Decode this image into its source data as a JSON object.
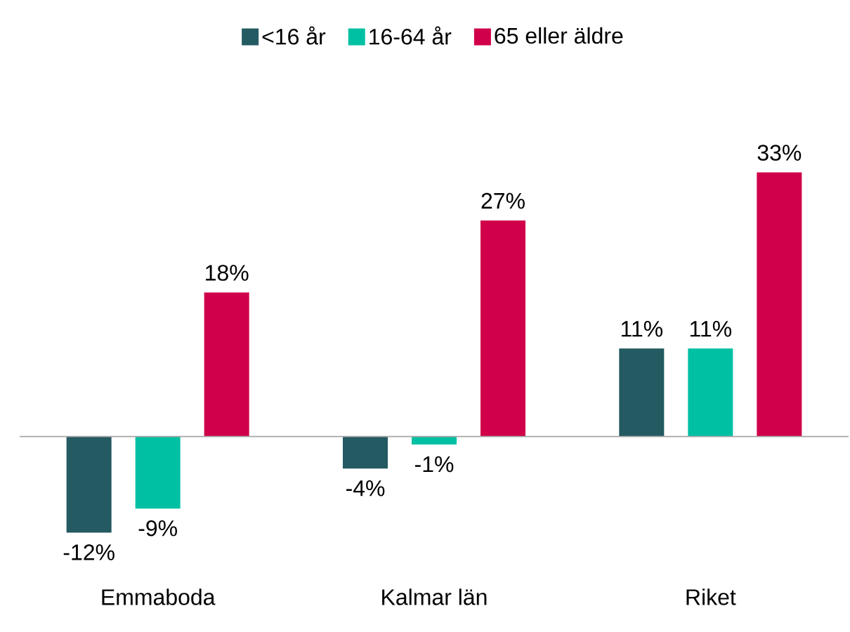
{
  "chart_data": {
    "type": "bar",
    "categories": [
      "Emmaboda",
      "Kalmar län",
      "Riket"
    ],
    "series": [
      {
        "name": "<16 år",
        "color": "#245a62",
        "values": [
          -12,
          -4,
          11
        ],
        "value_labels": [
          "-12%",
          "-4%",
          "11%"
        ]
      },
      {
        "name": "16-64 år",
        "color": "#00c0a3",
        "values": [
          -9,
          -1,
          11
        ],
        "value_labels": [
          "-9%",
          "-1%",
          "11%"
        ]
      },
      {
        "name": "65 eller äldre",
        "color": "#d0004a",
        "values": [
          18,
          27,
          33
        ],
        "value_labels": [
          "18%",
          "27%",
          "33%"
        ]
      }
    ],
    "legend": "top"
  }
}
